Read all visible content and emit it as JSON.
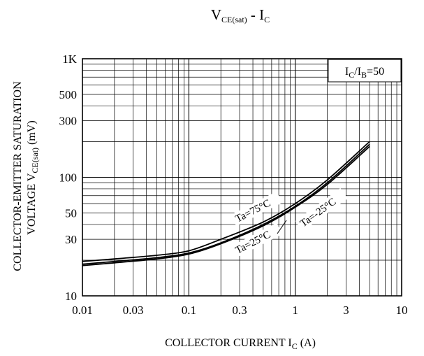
{
  "chart_data": {
    "type": "line",
    "title": {
      "main": "V",
      "main_sub": "CE(sat)",
      "sep": " - I",
      "tail_sub": "C"
    },
    "xlabel": {
      "main": "COLLECTOR CURRENT I",
      "sub": "C",
      "unit": "  (A)"
    },
    "ylabel": {
      "line1": "COLLECTOR-EMITTER SATURATION",
      "line2_main": "VOLTAGE V",
      "line2_sub": "CE(sat)",
      "line2_unit": "  (mV)"
    },
    "x_scale": "log",
    "y_scale": "log",
    "xlim": [
      0.01,
      10
    ],
    "ylim": [
      10,
      1000
    ],
    "x_ticks": [
      {
        "value": 0.01,
        "label": "0.01"
      },
      {
        "value": 0.03,
        "label": "0.03"
      },
      {
        "value": 0.1,
        "label": "0.1"
      },
      {
        "value": 0.3,
        "label": "0.3"
      },
      {
        "value": 1,
        "label": "1"
      },
      {
        "value": 3,
        "label": "3"
      },
      {
        "value": 10,
        "label": "10"
      }
    ],
    "y_ticks": [
      {
        "value": 10,
        "label": "10"
      },
      {
        "value": 30,
        "label": "30"
      },
      {
        "value": 50,
        "label": "50"
      },
      {
        "value": 100,
        "label": "100"
      },
      {
        "value": 300,
        "label": "300"
      },
      {
        "value": 500,
        "label": "500"
      },
      {
        "value": 1000,
        "label": "1K"
      }
    ],
    "grid": true,
    "legend": {
      "position": "top-right",
      "main1": "I",
      "sub1": "C",
      "sep": "/I",
      "sub2": "B",
      "tail": "=50"
    },
    "series": [
      {
        "name": "Ta=75°C",
        "x": [
          0.01,
          0.02,
          0.05,
          0.1,
          0.2,
          0.5,
          1,
          2,
          5
        ],
        "y": [
          19.5,
          20.5,
          22,
          24,
          30,
          42,
          60,
          95,
          200
        ]
      },
      {
        "name": "Ta=25°C",
        "x": [
          0.01,
          0.02,
          0.05,
          0.1,
          0.2,
          0.5,
          1,
          2,
          5
        ],
        "y": [
          18.5,
          19.5,
          21,
          23,
          28,
          40,
          57,
          90,
          190
        ]
      },
      {
        "name": "Ta=-25°C",
        "x": [
          0.01,
          0.02,
          0.05,
          0.1,
          0.2,
          0.5,
          1,
          2,
          5
        ],
        "y": [
          18,
          19,
          20.5,
          22.5,
          27.5,
          39,
          56,
          87,
          182
        ]
      }
    ]
  }
}
